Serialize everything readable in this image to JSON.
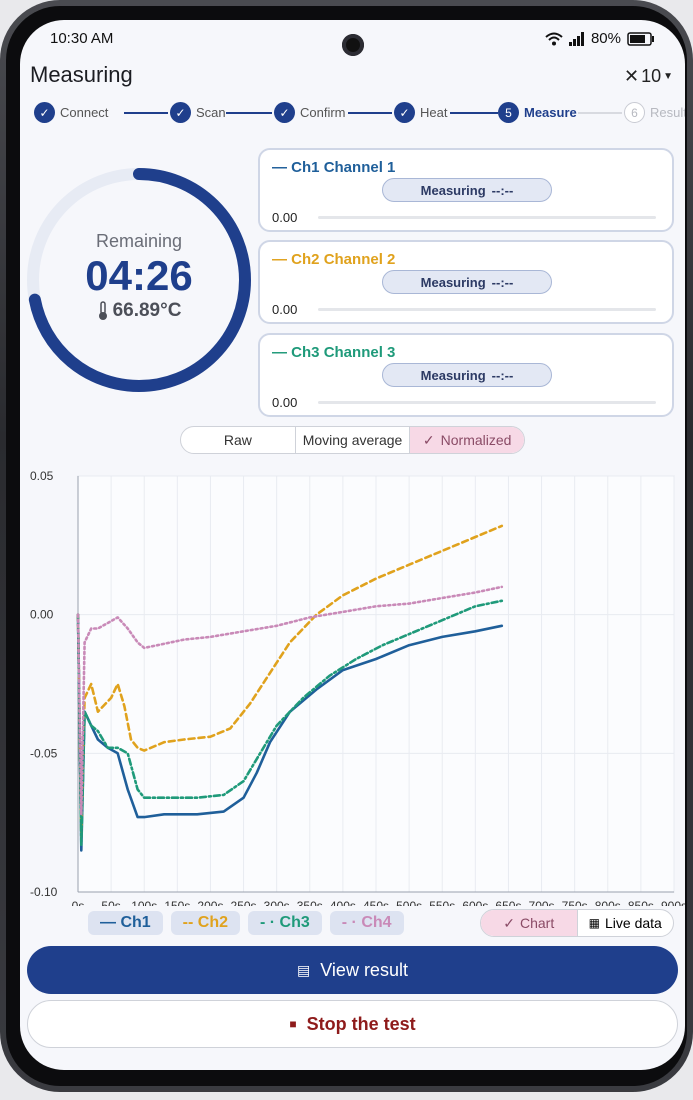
{
  "status": {
    "time": "10:30 AM",
    "battery": "80%",
    "icons": [
      "wifi-icon",
      "signal-icon",
      "battery-icon"
    ]
  },
  "appbar": {
    "title": "Measuring",
    "zoom": "10"
  },
  "steps": [
    {
      "num": "1",
      "label": "Connect",
      "state": "done"
    },
    {
      "num": "2",
      "label": "Scan",
      "state": "done"
    },
    {
      "num": "3",
      "label": "Confirm",
      "state": "done"
    },
    {
      "num": "4",
      "label": "Heat",
      "state": "done"
    },
    {
      "num": "5",
      "label": "Measure",
      "state": "active"
    },
    {
      "num": "6",
      "label": "Result",
      "state": "pending"
    }
  ],
  "gauge": {
    "label": "Remaining",
    "time": "04:26",
    "temperature": "66.89°C",
    "progress": 0.72
  },
  "channels": [
    {
      "short": "— Ch1",
      "name": "Channel 1",
      "status": "Measuring",
      "eta": "--:--",
      "value": "0.00",
      "color": "#1f5f9a"
    },
    {
      "short": "— Ch2",
      "name": "Channel 2",
      "status": "Measuring",
      "eta": "--:--",
      "value": "0.00",
      "color": "#e0a21d"
    },
    {
      "short": "— Ch3",
      "name": "Channel 3",
      "status": "Measuring",
      "eta": "--:--",
      "value": "0.00",
      "color": "#1f9a7a"
    }
  ],
  "modes": {
    "raw": "Raw",
    "moving": "Moving average",
    "normalized": "Normalized"
  },
  "legend": {
    "ch1": "— Ch1",
    "ch2": "-- Ch2",
    "ch3": "- · Ch3",
    "ch4": "- · Ch4"
  },
  "view": {
    "chart": "Chart",
    "live": "Live data"
  },
  "actions": {
    "view_result": "View result",
    "stop": "Stop the test"
  },
  "chart_data": {
    "type": "line",
    "xlim": [
      0,
      900
    ],
    "ylim": [
      -0.1,
      0.05
    ],
    "xticks": [
      "0s",
      "50s",
      "100s",
      "150s",
      "200s",
      "250s",
      "300s",
      "350s",
      "400s",
      "450s",
      "500s",
      "550s",
      "600s",
      "650s",
      "700s",
      "750s",
      "800s",
      "850s",
      "900s"
    ],
    "yticks": [
      "0.05",
      "0.00",
      "-0.05",
      "-0.10"
    ],
    "grid": true,
    "series": [
      {
        "name": "Ch1",
        "color": "#1f5f9a",
        "dash": "",
        "x": [
          0,
          5,
          10,
          20,
          30,
          45,
          60,
          75,
          90,
          100,
          130,
          180,
          220,
          250,
          270,
          290,
          320,
          360,
          400,
          450,
          500,
          550,
          600,
          640
        ],
        "y": [
          0.0,
          -0.085,
          -0.035,
          -0.04,
          -0.045,
          -0.048,
          -0.05,
          -0.063,
          -0.073,
          -0.073,
          -0.072,
          -0.072,
          -0.071,
          -0.066,
          -0.057,
          -0.046,
          -0.035,
          -0.027,
          -0.02,
          -0.016,
          -0.011,
          -0.008,
          -0.006,
          -0.004
        ]
      },
      {
        "name": "Ch2",
        "color": "#e0a21d",
        "dash": "6,4",
        "x": [
          0,
          5,
          10,
          20,
          30,
          50,
          60,
          70,
          80,
          90,
          100,
          130,
          160,
          200,
          230,
          260,
          290,
          320,
          360,
          400,
          450,
          500,
          550,
          600,
          640
        ],
        "y": [
          0.0,
          -0.08,
          -0.03,
          -0.025,
          -0.035,
          -0.03,
          -0.025,
          -0.033,
          -0.045,
          -0.048,
          -0.049,
          -0.046,
          -0.045,
          -0.044,
          -0.041,
          -0.032,
          -0.021,
          -0.01,
          0.0,
          0.007,
          0.013,
          0.018,
          0.023,
          0.028,
          0.032
        ]
      },
      {
        "name": "Ch3",
        "color": "#1f9a7a",
        "dash": "6,3,2,3",
        "x": [
          0,
          5,
          10,
          20,
          30,
          45,
          60,
          75,
          90,
          100,
          130,
          180,
          220,
          250,
          270,
          300,
          340,
          380,
          420,
          460,
          500,
          550,
          600,
          640
        ],
        "y": [
          0.0,
          -0.083,
          -0.035,
          -0.04,
          -0.042,
          -0.048,
          -0.048,
          -0.05,
          -0.063,
          -0.066,
          -0.066,
          -0.066,
          -0.065,
          -0.06,
          -0.052,
          -0.04,
          -0.03,
          -0.022,
          -0.016,
          -0.011,
          -0.007,
          -0.002,
          0.003,
          0.005
        ]
      },
      {
        "name": "Ch4",
        "color": "#c98ab8",
        "dash": "2,3",
        "x": [
          0,
          5,
          10,
          20,
          30,
          45,
          60,
          75,
          90,
          100,
          120,
          160,
          200,
          250,
          300,
          350,
          400,
          450,
          500,
          550,
          600,
          640
        ],
        "y": [
          0.0,
          -0.072,
          -0.01,
          -0.005,
          -0.005,
          -0.003,
          -0.001,
          -0.005,
          -0.01,
          -0.012,
          -0.011,
          -0.009,
          -0.008,
          -0.006,
          -0.004,
          -0.001,
          0.001,
          0.003,
          0.004,
          0.006,
          0.008,
          0.01
        ]
      }
    ]
  }
}
